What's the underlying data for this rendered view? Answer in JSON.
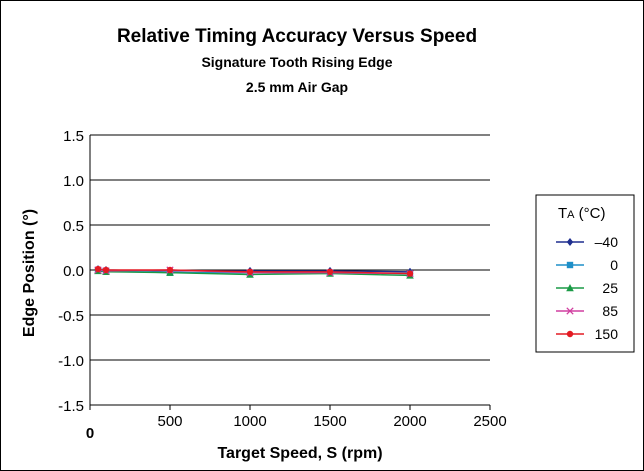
{
  "chart_data": {
    "type": "line",
    "title": "Relative Timing Accuracy Versus Speed",
    "subtitle_lines": [
      "Signature Tooth Rising Edge",
      "2.5 mm Air Gap"
    ],
    "xlabel": "Target Speed, S (rpm)",
    "ylabel": "Edge Position (°)",
    "xlim": [
      0,
      2500
    ],
    "ylim": [
      -1.5,
      1.5
    ],
    "x_ticks": [
      {
        "value": 0,
        "label": "0"
      },
      {
        "value": 500,
        "label": "500"
      },
      {
        "value": 1000,
        "label": "1000"
      },
      {
        "value": 1500,
        "label": "1500"
      },
      {
        "value": 2000,
        "label": "2000"
      },
      {
        "value": 2500,
        "label": "2500"
      }
    ],
    "y_ticks": [
      {
        "value": 1.5,
        "label": "1.5"
      },
      {
        "value": 1.0,
        "label": "1.0"
      },
      {
        "value": 0.5,
        "label": "0.5"
      },
      {
        "value": 0.0,
        "label": "0.0"
      },
      {
        "value": -0.5,
        "label": "-0.5"
      },
      {
        "value": -1.0,
        "label": "-1.0"
      },
      {
        "value": -1.5,
        "label": "-1.5"
      }
    ],
    "grid": "horizontal",
    "legend": {
      "title_main": "T",
      "title_sub": "A",
      "title_rest": " (°C)",
      "placement": "right"
    },
    "series": [
      {
        "name": "–40",
        "color": "#1f2f8f",
        "marker": "diamond",
        "points": [
          [
            50,
            0.01
          ],
          [
            100,
            0.0
          ],
          [
            500,
            -0.01
          ],
          [
            1000,
            -0.01
          ],
          [
            1500,
            -0.01
          ],
          [
            2000,
            -0.02
          ]
        ]
      },
      {
        "name": "0",
        "color": "#1e8fc8",
        "marker": "square",
        "points": [
          [
            50,
            0.0
          ],
          [
            100,
            -0.01
          ],
          [
            500,
            -0.03
          ],
          [
            1000,
            -0.03
          ],
          [
            1500,
            -0.03
          ],
          [
            2000,
            -0.04
          ]
        ]
      },
      {
        "name": "25",
        "color": "#1a9a46",
        "marker": "triangle",
        "points": [
          [
            50,
            -0.01
          ],
          [
            100,
            -0.02
          ],
          [
            500,
            -0.03
          ],
          [
            1000,
            -0.05
          ],
          [
            1500,
            -0.04
          ],
          [
            2000,
            -0.06
          ]
        ]
      },
      {
        "name": "85",
        "color": "#d13fa0",
        "marker": "x",
        "points": [
          [
            50,
            0.0
          ],
          [
            100,
            -0.01
          ],
          [
            500,
            0.0
          ],
          [
            1000,
            -0.03
          ],
          [
            1500,
            -0.03
          ],
          [
            2000,
            -0.04
          ]
        ]
      },
      {
        "name": "150",
        "color": "#e31b23",
        "marker": "circle",
        "points": [
          [
            50,
            0.01
          ],
          [
            100,
            0.0
          ],
          [
            500,
            0.0
          ],
          [
            1000,
            -0.02
          ],
          [
            1500,
            -0.02
          ],
          [
            2000,
            -0.04
          ]
        ]
      }
    ]
  }
}
